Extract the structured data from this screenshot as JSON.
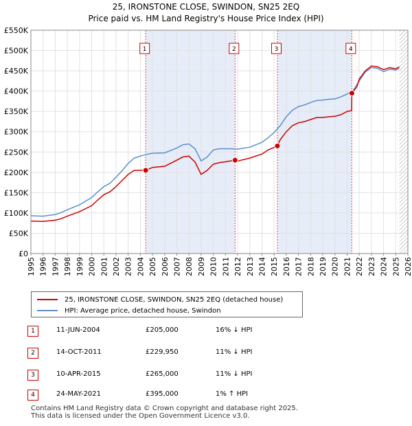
{
  "chart_data": {
    "type": "line",
    "title_line1": "25, IRONSTONE CLOSE, SWINDON, SN25 2EQ",
    "title_line2": "Price paid vs. HM Land Registry's House Price Index (HPI)",
    "xlim": [
      1995,
      2026
    ],
    "ylim": [
      0,
      550000
    ],
    "x_ticks": [
      "1995",
      "1996",
      "1997",
      "1998",
      "1999",
      "2000",
      "2001",
      "2002",
      "2003",
      "2004",
      "2005",
      "2006",
      "2007",
      "2008",
      "2009",
      "2010",
      "2011",
      "2012",
      "2013",
      "2014",
      "2015",
      "2016",
      "2017",
      "2018",
      "2019",
      "2020",
      "2021",
      "2022",
      "2023",
      "2024",
      "2025",
      "2026"
    ],
    "y_ticks": [
      {
        "value": 0,
        "label": "£0"
      },
      {
        "value": 50000,
        "label": "£50K"
      },
      {
        "value": 100000,
        "label": "£100K"
      },
      {
        "value": 150000,
        "label": "£150K"
      },
      {
        "value": 200000,
        "label": "£200K"
      },
      {
        "value": 250000,
        "label": "£250K"
      },
      {
        "value": 300000,
        "label": "£300K"
      },
      {
        "value": 350000,
        "label": "£350K"
      },
      {
        "value": 400000,
        "label": "£400K"
      },
      {
        "value": 450000,
        "label": "£450K"
      },
      {
        "value": 500000,
        "label": "£500K"
      },
      {
        "value": 550000,
        "label": "£550K"
      }
    ],
    "series": [
      {
        "name": "25, IRONSTONE CLOSE, SWINDON, SN25 2EQ (detached house)",
        "color": "#cc0000",
        "points": [
          [
            1995.0,
            80000
          ],
          [
            1996.0,
            79000
          ],
          [
            1997.0,
            82000
          ],
          [
            1997.5,
            86000
          ],
          [
            1998.0,
            92000
          ],
          [
            1999.0,
            103000
          ],
          [
            2000.0,
            118000
          ],
          [
            2000.5,
            132000
          ],
          [
            2001.0,
            145000
          ],
          [
            2001.5,
            152000
          ],
          [
            2002.0,
            165000
          ],
          [
            2002.5,
            180000
          ],
          [
            2003.0,
            195000
          ],
          [
            2003.5,
            205000
          ],
          [
            2004.0,
            205000
          ],
          [
            2004.44,
            205000
          ],
          [
            2005.0,
            212000
          ],
          [
            2006.0,
            215000
          ],
          [
            2007.0,
            230000
          ],
          [
            2007.5,
            238000
          ],
          [
            2008.0,
            240000
          ],
          [
            2008.5,
            225000
          ],
          [
            2009.0,
            195000
          ],
          [
            2009.5,
            205000
          ],
          [
            2010.0,
            220000
          ],
          [
            2010.5,
            224000
          ],
          [
            2011.0,
            226000
          ],
          [
            2011.79,
            229950
          ],
          [
            2012.0,
            228000
          ],
          [
            2013.0,
            235000
          ],
          [
            2014.0,
            245000
          ],
          [
            2014.5,
            255000
          ],
          [
            2015.27,
            265000
          ],
          [
            2015.5,
            280000
          ],
          [
            2016.0,
            300000
          ],
          [
            2016.5,
            315000
          ],
          [
            2017.0,
            322000
          ],
          [
            2017.5,
            325000
          ],
          [
            2018.0,
            330000
          ],
          [
            2018.5,
            335000
          ],
          [
            2019.0,
            335000
          ],
          [
            2019.5,
            337000
          ],
          [
            2020.0,
            338000
          ],
          [
            2020.5,
            342000
          ],
          [
            2021.0,
            350000
          ],
          [
            2021.38,
            352000
          ],
          [
            2021.39,
            395000
          ],
          [
            2021.8,
            410000
          ],
          [
            2022.0,
            430000
          ],
          [
            2022.5,
            450000
          ],
          [
            2023.0,
            462000
          ],
          [
            2023.5,
            460000
          ],
          [
            2024.0,
            453000
          ],
          [
            2024.5,
            458000
          ],
          [
            2025.0,
            455000
          ],
          [
            2025.3,
            460000
          ]
        ]
      },
      {
        "name": "HPI: Average price, detached house, Swindon",
        "color": "#5b8fc9",
        "points": [
          [
            1995.0,
            93000
          ],
          [
            1996.0,
            92000
          ],
          [
            1997.0,
            96000
          ],
          [
            1997.5,
            101000
          ],
          [
            1998.0,
            108000
          ],
          [
            1999.0,
            120000
          ],
          [
            2000.0,
            138000
          ],
          [
            2000.5,
            152000
          ],
          [
            2001.0,
            165000
          ],
          [
            2001.5,
            173000
          ],
          [
            2002.0,
            188000
          ],
          [
            2002.5,
            204000
          ],
          [
            2003.0,
            222000
          ],
          [
            2003.5,
            235000
          ],
          [
            2004.0,
            240000
          ],
          [
            2004.5,
            244000
          ],
          [
            2005.0,
            247000
          ],
          [
            2006.0,
            248000
          ],
          [
            2007.0,
            260000
          ],
          [
            2007.5,
            268000
          ],
          [
            2008.0,
            270000
          ],
          [
            2008.5,
            258000
          ],
          [
            2009.0,
            228000
          ],
          [
            2009.5,
            238000
          ],
          [
            2010.0,
            255000
          ],
          [
            2010.5,
            258000
          ],
          [
            2011.0,
            258000
          ],
          [
            2011.5,
            258000
          ],
          [
            2012.0,
            257000
          ],
          [
            2013.0,
            262000
          ],
          [
            2014.0,
            274000
          ],
          [
            2014.5,
            285000
          ],
          [
            2015.0,
            298000
          ],
          [
            2015.5,
            315000
          ],
          [
            2016.0,
            337000
          ],
          [
            2016.5,
            353000
          ],
          [
            2017.0,
            362000
          ],
          [
            2017.5,
            366000
          ],
          [
            2018.0,
            372000
          ],
          [
            2018.5,
            377000
          ],
          [
            2019.0,
            378000
          ],
          [
            2019.5,
            380000
          ],
          [
            2020.0,
            381000
          ],
          [
            2020.5,
            386000
          ],
          [
            2021.0,
            393000
          ],
          [
            2021.5,
            402000
          ],
          [
            2022.0,
            425000
          ],
          [
            2022.5,
            447000
          ],
          [
            2023.0,
            458000
          ],
          [
            2023.5,
            456000
          ],
          [
            2024.0,
            448000
          ],
          [
            2024.5,
            454000
          ],
          [
            2025.0,
            452000
          ],
          [
            2025.3,
            456000
          ]
        ]
      }
    ],
    "sales": [
      {
        "num": "1",
        "x": 2004.44,
        "value": 205000,
        "date": "11-JUN-2004",
        "price": "£205,000",
        "hpi": "16% ↓ HPI"
      },
      {
        "num": "2",
        "x": 2011.79,
        "value": 229950,
        "date": "14-OCT-2011",
        "price": "£229,950",
        "hpi": "11% ↓ HPI"
      },
      {
        "num": "3",
        "x": 2015.27,
        "value": 265000,
        "date": "10-APR-2015",
        "price": "£265,000",
        "hpi": "11% ↓ HPI"
      },
      {
        "num": "4",
        "x": 2021.39,
        "value": 395000,
        "date": "24-MAY-2021",
        "price": "£395,000",
        "hpi": "1% ↑ HPI"
      }
    ],
    "shaded_ranges": [
      [
        2004.44,
        2011.79
      ],
      [
        2015.27,
        2021.39
      ]
    ],
    "hatch_from": 2025.3
  },
  "footer": {
    "line1": "Contains HM Land Registry data © Crown copyright and database right 2025.",
    "line2": "This data is licensed under the Open Government Licence v3.0."
  }
}
